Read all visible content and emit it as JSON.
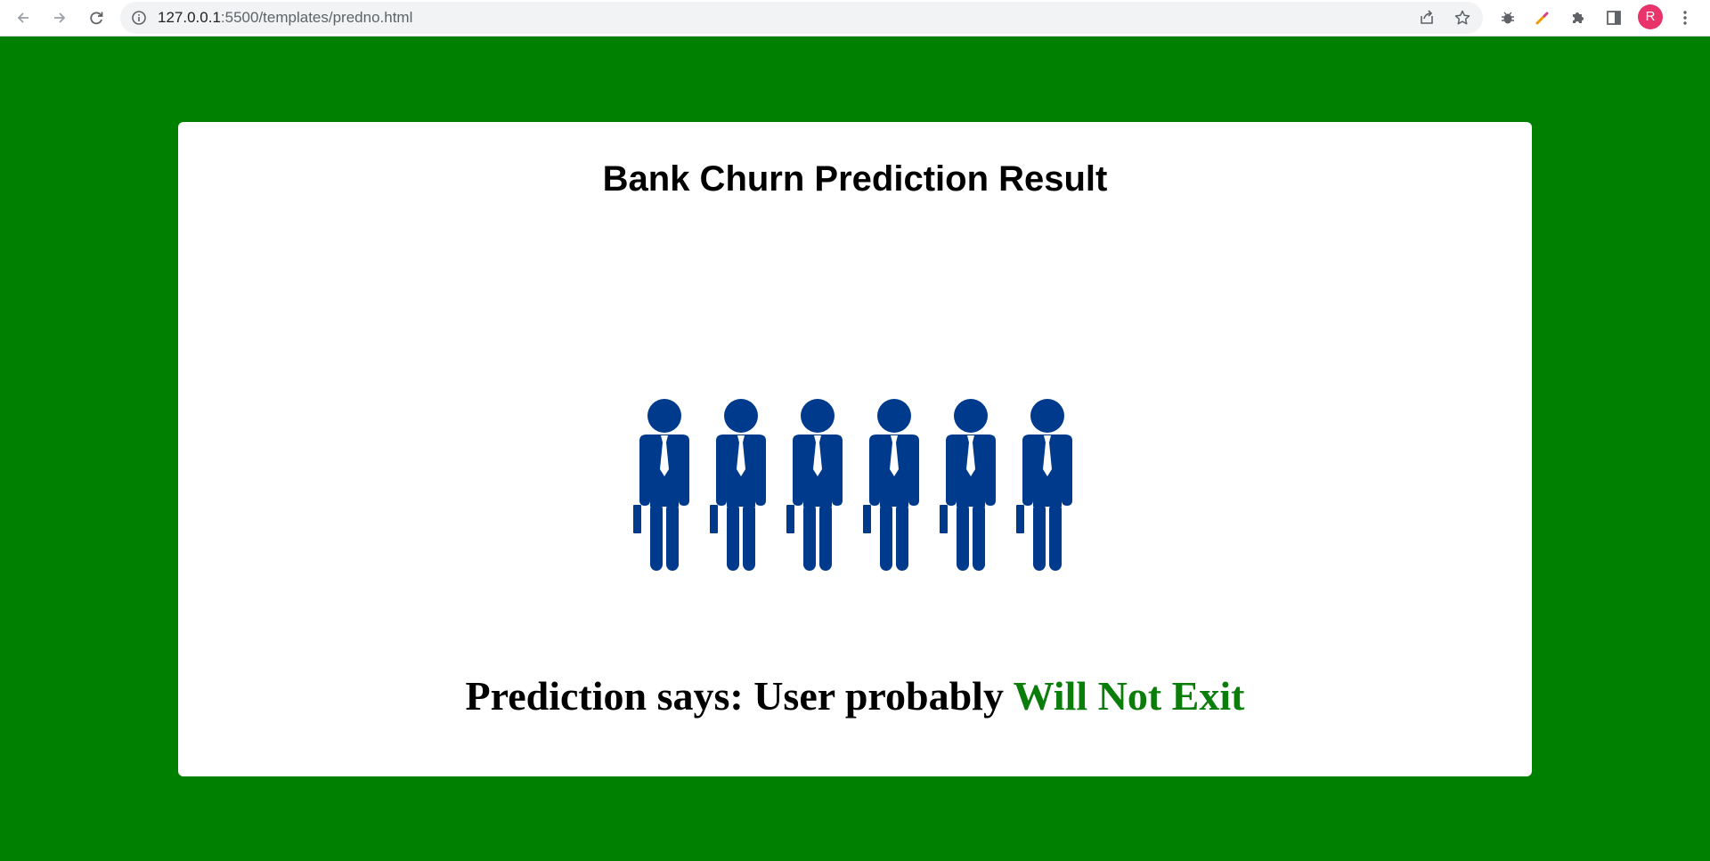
{
  "browser": {
    "url_host": "127.0.0.1",
    "url_path": ":5500/templates/predno.html",
    "profile_initial": "R"
  },
  "page": {
    "title": "Bank Churn Prediction Result",
    "result_prefix": "Prediction says: User probably ",
    "result_verdict": "Will Not Exit",
    "background_color": "#008000",
    "verdict_color": "#0a7d0a",
    "figure_color": "#003a8c"
  },
  "illustration": {
    "icon": "businessman-group-icon",
    "figure_count": 6
  }
}
